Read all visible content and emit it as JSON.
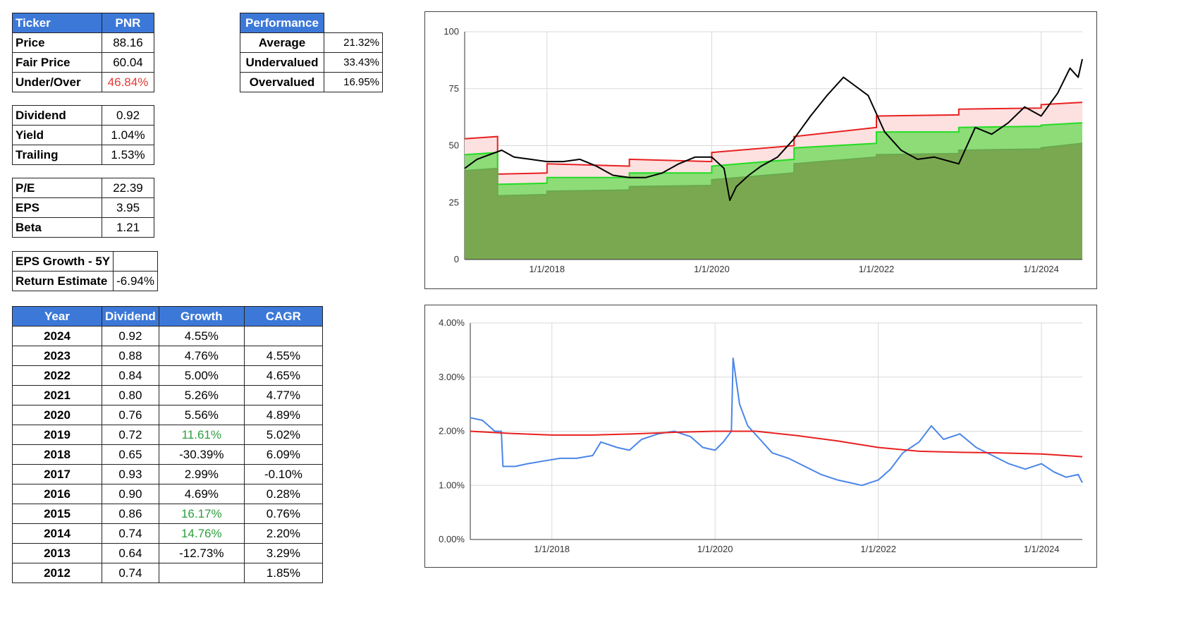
{
  "ticker_table": {
    "header": [
      "Ticker",
      "PNR"
    ],
    "rows": [
      {
        "label": "Price",
        "value": "88.16"
      },
      {
        "label": "Fair Price",
        "value": "60.04"
      },
      {
        "label": "Under/Over",
        "value": "46.84%"
      }
    ]
  },
  "performance_table": {
    "header": "Performance",
    "rows": [
      {
        "label": "Average",
        "value": "21.32%"
      },
      {
        "label": "Undervalued",
        "value": "33.43%"
      },
      {
        "label": "Overvalued",
        "value": "16.95%"
      }
    ]
  },
  "dividend_table": {
    "rows": [
      {
        "label": "Dividend",
        "value": "0.92"
      },
      {
        "label": "Yield",
        "value": "1.04%"
      },
      {
        "label": "Trailing",
        "value": "1.53%"
      }
    ]
  },
  "pe_table": {
    "rows": [
      {
        "label": "P/E",
        "value": "22.39"
      },
      {
        "label": "EPS",
        "value": "3.95"
      },
      {
        "label": "Beta",
        "value": "1.21"
      }
    ]
  },
  "growth_table": {
    "rows": [
      {
        "label": "EPS Growth - 5Y",
        "value": ""
      },
      {
        "label": "Return Estimate",
        "value": "-6.94%"
      }
    ]
  },
  "history_table": {
    "headers": [
      "Year",
      "Dividend",
      "Growth",
      "CAGR"
    ],
    "rows": [
      {
        "year": "2024",
        "dividend": "0.92",
        "growth": "4.55%",
        "cagr": ""
      },
      {
        "year": "2023",
        "dividend": "0.88",
        "growth": "4.76%",
        "cagr": "4.55%"
      },
      {
        "year": "2022",
        "dividend": "0.84",
        "growth": "5.00%",
        "cagr": "4.65%"
      },
      {
        "year": "2021",
        "dividend": "0.80",
        "growth": "5.26%",
        "cagr": "4.77%"
      },
      {
        "year": "2020",
        "dividend": "0.76",
        "growth": "5.56%",
        "cagr": "4.89%"
      },
      {
        "year": "2019",
        "dividend": "0.72",
        "growth": "11.61%",
        "cagr": "5.02%"
      },
      {
        "year": "2018",
        "dividend": "0.65",
        "growth": "-30.39%",
        "cagr": "6.09%"
      },
      {
        "year": "2017",
        "dividend": "0.93",
        "growth": "2.99%",
        "cagr": "-0.10%"
      },
      {
        "year": "2016",
        "dividend": "0.90",
        "growth": "4.69%",
        "cagr": "0.28%"
      },
      {
        "year": "2015",
        "dividend": "0.86",
        "growth": "16.17%",
        "cagr": "0.76%"
      },
      {
        "year": "2014",
        "dividend": "0.74",
        "growth": "14.76%",
        "cagr": "2.20%"
      },
      {
        "year": "2013",
        "dividend": "0.64",
        "growth": "-12.73%",
        "cagr": "3.29%"
      },
      {
        "year": "2012",
        "dividend": "0.74",
        "growth": "",
        "cagr": "1.85%"
      }
    ]
  },
  "colors": {
    "header_blue": "#3c78d8",
    "negative_red": "#e53935",
    "positive_green": "#2e9e3e",
    "price_line": "#000000",
    "fair_line": "#e82020",
    "under_line": "#22dd22",
    "yield_line": "#4a86e8"
  },
  "chart_data": [
    {
      "type": "area",
      "title": "",
      "ylim": [
        0,
        100
      ],
      "yticks": [
        0,
        25,
        50,
        75,
        100
      ],
      "xlim": [
        2017.0,
        2024.5
      ],
      "xticks": [
        2018,
        2020,
        2022,
        2024
      ],
      "xtick_labels": [
        "1/1/2018",
        "1/1/2020",
        "1/1/2022",
        "1/1/2024"
      ],
      "grid": true,
      "series": [
        {
          "kind": "step-area",
          "color": "#e82020",
          "fill": "#fde0e0",
          "x": [
            2017.0,
            2017.4,
            2017.4,
            2018.0,
            2018.0,
            2019.0,
            2019.0,
            2020.0,
            2020.0,
            2021.0,
            2021.0,
            2022.0,
            2022.0,
            2023.0,
            2023.0,
            2024.0,
            2024.0,
            2024.5
          ],
          "y": [
            53,
            54,
            37.5,
            38,
            42,
            41,
            44,
            43,
            47,
            50,
            54,
            58,
            63,
            63.5,
            66,
            66.5,
            68,
            69
          ]
        },
        {
          "kind": "step-area",
          "color": "#22dd22",
          "fill": "#8ddc78",
          "x": [
            2017.0,
            2017.4,
            2017.4,
            2018.0,
            2018.0,
            2019.0,
            2019.0,
            2020.0,
            2020.0,
            2021.0,
            2021.0,
            2022.0,
            2022.0,
            2023.0,
            2023.0,
            2024.0,
            2024.0,
            2024.5
          ],
          "y": [
            46,
            47,
            33,
            33.5,
            36,
            36,
            38,
            38,
            41,
            44,
            49,
            51,
            56,
            56,
            58,
            58.5,
            59,
            60
          ]
        },
        {
          "kind": "step-area",
          "color": "#6aa84f",
          "fill": "#79a850",
          "x": [
            2017.0,
            2017.4,
            2017.4,
            2018.0,
            2018.0,
            2019.0,
            2019.0,
            2020.0,
            2020.0,
            2021.0,
            2021.0,
            2022.0,
            2022.0,
            2023.0,
            2023.0,
            2024.0,
            2024.0,
            2024.5
          ],
          "y": [
            39,
            40,
            28,
            28.5,
            30,
            30.5,
            32,
            32.5,
            35,
            38,
            42,
            45,
            46,
            46.5,
            48,
            48.5,
            49,
            51
          ]
        },
        {
          "kind": "line",
          "color": "#000000",
          "x": [
            2017.0,
            2017.15,
            2017.3,
            2017.45,
            2017.6,
            2017.8,
            2018.0,
            2018.2,
            2018.4,
            2018.6,
            2018.8,
            2019.0,
            2019.2,
            2019.4,
            2019.6,
            2019.8,
            2020.0,
            2020.15,
            2020.22,
            2020.3,
            2020.45,
            2020.6,
            2020.8,
            2021.0,
            2021.2,
            2021.4,
            2021.6,
            2021.75,
            2021.9,
            2022.1,
            2022.3,
            2022.5,
            2022.7,
            2022.9,
            2023.0,
            2023.2,
            2023.4,
            2023.6,
            2023.8,
            2024.0,
            2024.2,
            2024.35,
            2024.45,
            2024.5
          ],
          "y": [
            40,
            44,
            46,
            48,
            45,
            44,
            43,
            43,
            44,
            41,
            37,
            36,
            36,
            38,
            42,
            45,
            45,
            40,
            26,
            32,
            37,
            41,
            45,
            53,
            63,
            72,
            80,
            76,
            72,
            56,
            48,
            44,
            45,
            43,
            42,
            58,
            55,
            60,
            67,
            63,
            73,
            84,
            80,
            88
          ]
        }
      ]
    },
    {
      "type": "line",
      "title": "",
      "ylim": [
        0,
        4
      ],
      "yticks": [
        0,
        1,
        2,
        3,
        4
      ],
      "ytick_labels": [
        "0.00%",
        "1.00%",
        "2.00%",
        "3.00%",
        "4.00%"
      ],
      "xlim": [
        2017.0,
        2024.5
      ],
      "xticks": [
        2018,
        2020,
        2022,
        2024
      ],
      "xtick_labels": [
        "1/1/2018",
        "1/1/2020",
        "1/1/2022",
        "1/1/2024"
      ],
      "grid": true,
      "series": [
        {
          "color": "#4a86e8",
          "x": [
            2017.0,
            2017.15,
            2017.3,
            2017.38,
            2017.4,
            2017.55,
            2017.7,
            2017.9,
            2018.1,
            2018.3,
            2018.5,
            2018.6,
            2018.8,
            2018.95,
            2019.1,
            2019.3,
            2019.5,
            2019.7,
            2019.85,
            2020.0,
            2020.1,
            2020.2,
            2020.22,
            2020.3,
            2020.4,
            2020.55,
            2020.7,
            2020.9,
            2021.1,
            2021.3,
            2021.5,
            2021.65,
            2021.8,
            2022.0,
            2022.15,
            2022.3,
            2022.5,
            2022.65,
            2022.8,
            2023.0,
            2023.2,
            2023.4,
            2023.6,
            2023.8,
            2024.0,
            2024.15,
            2024.3,
            2024.45,
            2024.5
          ],
          "y": [
            2.25,
            2.2,
            2.0,
            2.0,
            1.35,
            1.35,
            1.4,
            1.45,
            1.5,
            1.5,
            1.55,
            1.8,
            1.7,
            1.65,
            1.85,
            1.95,
            2.0,
            1.9,
            1.7,
            1.65,
            1.8,
            2.0,
            3.35,
            2.5,
            2.1,
            1.85,
            1.6,
            1.5,
            1.35,
            1.2,
            1.1,
            1.05,
            1.0,
            1.1,
            1.3,
            1.6,
            1.8,
            2.1,
            1.85,
            1.95,
            1.7,
            1.55,
            1.4,
            1.3,
            1.4,
            1.25,
            1.15,
            1.2,
            1.05
          ]
        },
        {
          "color": "#e82020",
          "x": [
            2017.0,
            2017.5,
            2018.0,
            2018.5,
            2019.0,
            2019.5,
            2020.0,
            2020.5,
            2021.0,
            2021.5,
            2022.0,
            2022.5,
            2023.0,
            2023.5,
            2024.0,
            2024.5
          ],
          "y": [
            2.0,
            1.96,
            1.93,
            1.93,
            1.95,
            1.98,
            2.0,
            2.0,
            1.92,
            1.82,
            1.7,
            1.63,
            1.61,
            1.6,
            1.58,
            1.53
          ]
        }
      ]
    }
  ]
}
